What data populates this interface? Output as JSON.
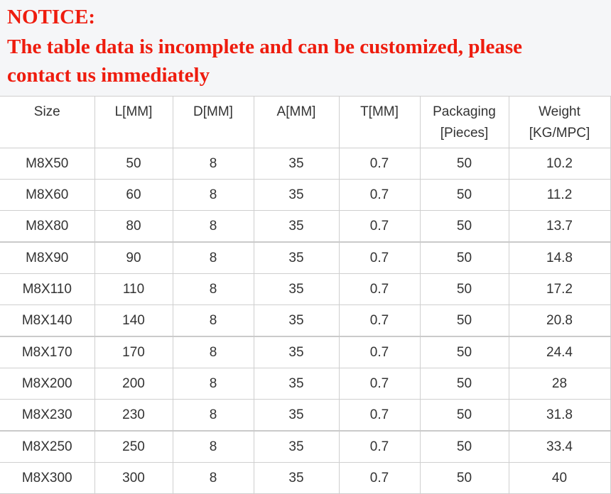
{
  "notice": {
    "title": "NOTICE:",
    "line1": "The table data is incomplete and can be customized, please",
    "line2": "contact us immediately",
    "color": "#ee1c0e"
  },
  "table": {
    "headers": [
      "Size",
      "L[MM]",
      "D[MM]",
      "A[MM]",
      "T[MM]",
      "Packaging [Pieces]",
      "Weight [KG/MPC]"
    ],
    "rows": [
      [
        "M8X50",
        "50",
        "8",
        "35",
        "0.7",
        "50",
        "10.2"
      ],
      [
        "M8X60",
        "60",
        "8",
        "35",
        "0.7",
        "50",
        "11.2"
      ],
      [
        "M8X80",
        "80",
        "8",
        "35",
        "0.7",
        "50",
        "13.7"
      ],
      [
        "M8X90",
        "90",
        "8",
        "35",
        "0.7",
        "50",
        "14.8"
      ],
      [
        "M8X110",
        "110",
        "8",
        "35",
        "0.7",
        "50",
        "17.2"
      ],
      [
        "M8X140",
        "140",
        "8",
        "35",
        "0.7",
        "50",
        "20.8"
      ],
      [
        "M8X170",
        "170",
        "8",
        "35",
        "0.7",
        "50",
        "24.4"
      ],
      [
        "M8X200",
        "200",
        "8",
        "35",
        "0.7",
        "50",
        "28"
      ],
      [
        "M8X230",
        "230",
        "8",
        "35",
        "0.7",
        "50",
        "31.8"
      ],
      [
        "M8X250",
        "250",
        "8",
        "35",
        "0.7",
        "50",
        "33.4"
      ],
      [
        "M8X300",
        "300",
        "8",
        "35",
        "0.7",
        "50",
        "40"
      ]
    ]
  }
}
